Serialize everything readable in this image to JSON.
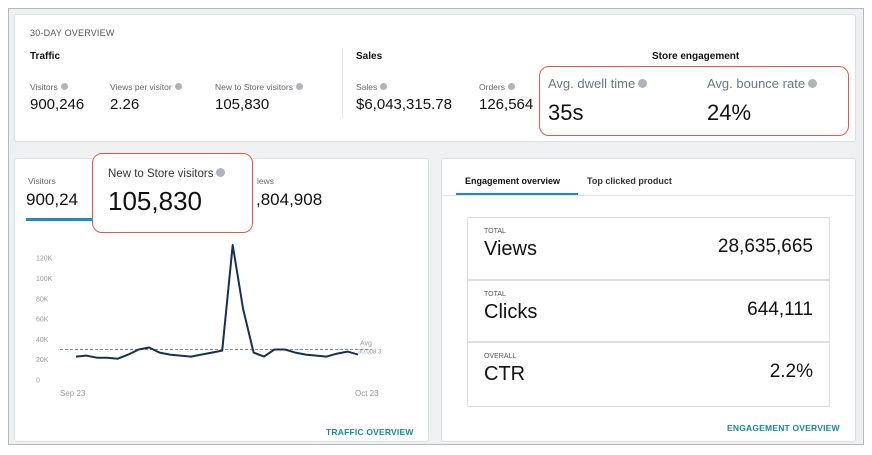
{
  "overview": {
    "title": "30-DAY OVERVIEW",
    "traffic": {
      "heading": "Traffic",
      "visitors_label": "Visitors",
      "visitors_value": "900,246",
      "vpv_label": "Views per visitor",
      "vpv_value": "2.26",
      "new_label": "New to Store visitors",
      "new_value": "105,830"
    },
    "sales": {
      "heading": "Sales",
      "sales_label": "Sales",
      "sales_value": "$6,043,315.78",
      "orders_label": "Orders",
      "orders_value": "126,564"
    },
    "engagement": {
      "heading": "Store engagement",
      "dwell_label": "Avg. dwell time",
      "dwell_value": "35s",
      "bounce_label": "Avg. bounce rate",
      "bounce_value": "24%"
    }
  },
  "traffic_panel": {
    "tab_visitors_label": "Visitors",
    "tab_visitors_value": "900,24",
    "tab_views_label": "iews",
    "tab_views_value": ",804,908",
    "callout_label": "New to Store visitors",
    "callout_value": "105,830",
    "link": "TRAFFIC OVERVIEW"
  },
  "chart_data": {
    "type": "line",
    "x_start_label": "Sep 23",
    "x_end_label": "Oct 23",
    "yticks": [
      "0",
      "20K",
      "40K",
      "60K",
      "80K",
      "100K",
      "120K"
    ],
    "ylim": [
      0,
      130000
    ],
    "values": [
      23000,
      24000,
      22000,
      22000,
      21000,
      25000,
      30000,
      32000,
      27000,
      25000,
      24000,
      23000,
      25000,
      27000,
      29000,
      133000,
      70000,
      27000,
      23000,
      30000,
      30000,
      27000,
      25000,
      24000,
      23000,
      26000,
      28000,
      25000
    ],
    "avg_value": 30008,
    "avg_label": "Avg",
    "avg_text": "30,008.3"
  },
  "engagement_panel": {
    "tabs": [
      "Engagement overview",
      "Top clicked product"
    ],
    "rows": [
      {
        "small": "TOTAL",
        "label": "Views",
        "value": "28,635,665"
      },
      {
        "small": "TOTAL",
        "label": "Clicks",
        "value": "644,111"
      },
      {
        "small": "OVERALL",
        "label": "CTR",
        "value": "2.2%"
      }
    ],
    "link": "ENGAGEMENT OVERVIEW"
  },
  "colors": {
    "accent": "#1f88c7",
    "highlight": "#e05a4a",
    "line": "#17324d",
    "link": "#168a9a"
  }
}
